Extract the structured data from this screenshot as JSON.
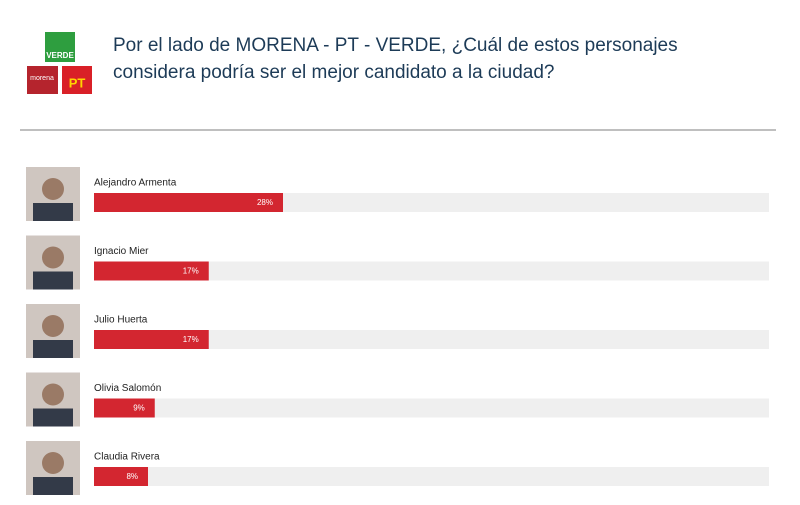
{
  "logos": [
    "VERDE",
    "morena",
    "PT"
  ],
  "chart_data": {
    "type": "bar",
    "orientation": "horizontal",
    "title": "Por el lado de MORENA - PT - VERDE, ¿Cuál de estos personajes considera podría ser el mejor candidato a la ciudad?",
    "categories": [
      "Alejandro Armenta",
      "Ignacio Mier",
      "Julio Huerta",
      "Olivia Salomón",
      "Claudia Rivera"
    ],
    "values": [
      28,
      17,
      17,
      9,
      8
    ],
    "value_labels": [
      "28%",
      "17%",
      "17%",
      "9%",
      "8%"
    ],
    "color": "#d32630",
    "xlim": [
      0,
      100
    ]
  }
}
